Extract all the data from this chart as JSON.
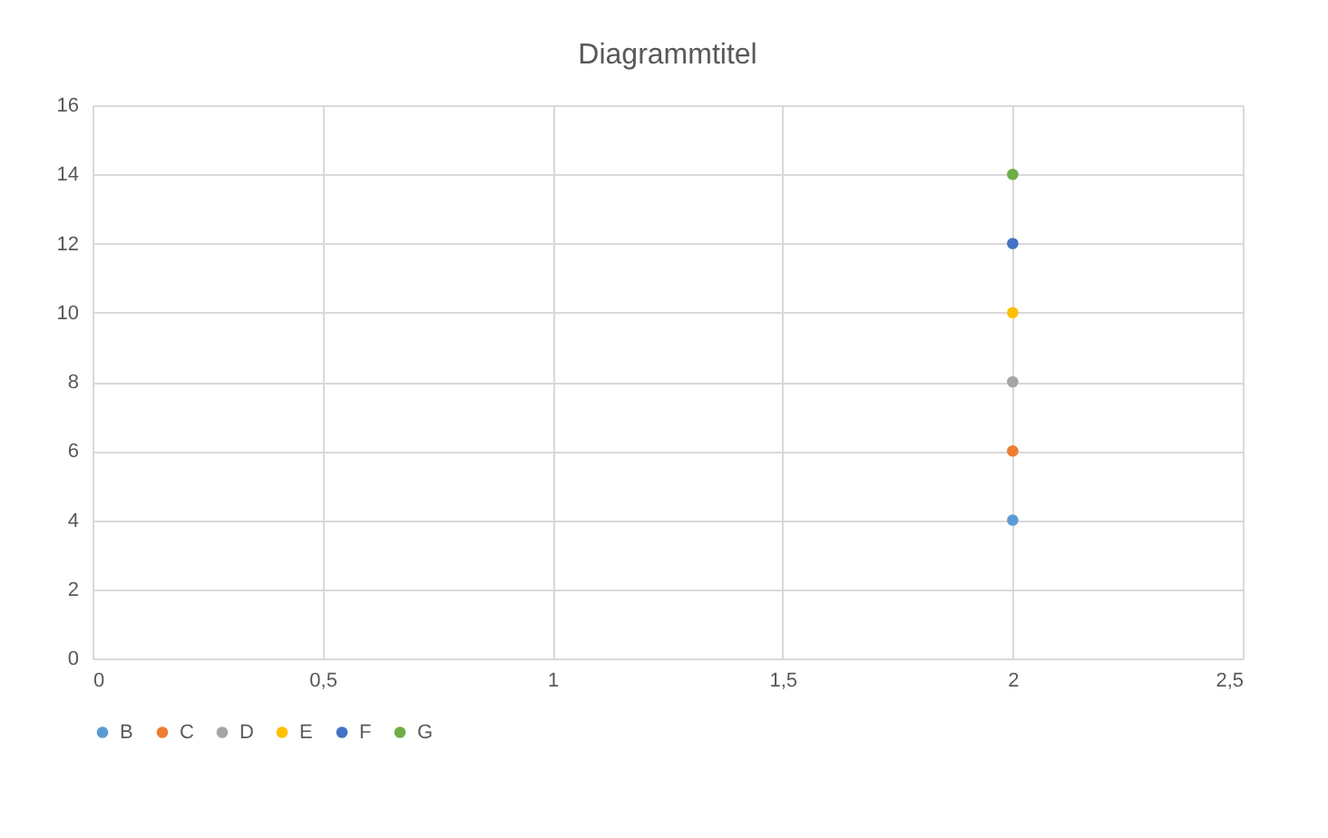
{
  "chart_data": {
    "type": "scatter",
    "title": "Diagrammtitel",
    "x": [
      2
    ],
    "series": [
      {
        "name": "B",
        "color": "#5b9bd5",
        "values": [
          4
        ]
      },
      {
        "name": "C",
        "color": "#ed7d31",
        "values": [
          6
        ]
      },
      {
        "name": "D",
        "color": "#a5a5a5",
        "values": [
          8
        ]
      },
      {
        "name": "E",
        "color": "#ffc000",
        "values": [
          10
        ]
      },
      {
        "name": "F",
        "color": "#4472c4",
        "values": [
          12
        ]
      },
      {
        "name": "G",
        "color": "#70ad47",
        "values": [
          14
        ]
      }
    ],
    "xlim": [
      0,
      2.5
    ],
    "xticks": [
      0,
      {
        "value": 0.5,
        "label": "0,5"
      },
      1,
      {
        "value": 1.5,
        "label": "1,5"
      },
      2,
      {
        "value": 2.5,
        "label": "2,5"
      }
    ],
    "ylim": [
      0,
      16
    ],
    "yticks": [
      0,
      2,
      4,
      6,
      8,
      10,
      12,
      14,
      16
    ],
    "grid": true,
    "legend": "bottom",
    "marker": "circle"
  }
}
